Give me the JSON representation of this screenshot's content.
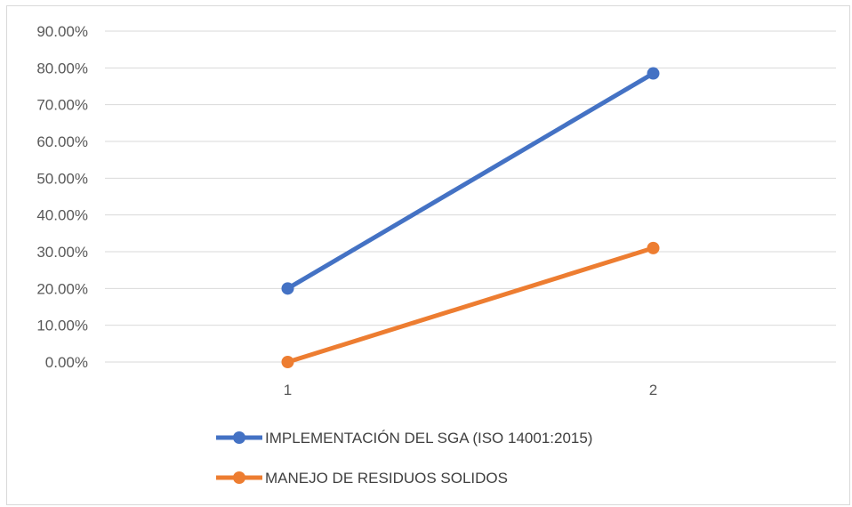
{
  "chart_data": {
    "type": "line",
    "x": [
      "1",
      "2"
    ],
    "series": [
      {
        "name": "IMPLEMENTACIÓN DEL SGA (ISO 14001:2015)",
        "values": [
          0.2,
          0.785
        ],
        "color": "#4472c4"
      },
      {
        "name": "MANEJO DE RESIDUOS SOLIDOS",
        "values": [
          0.0,
          0.31
        ],
        "color": "#ed7d31"
      }
    ],
    "ylim": [
      0,
      0.9
    ],
    "yticks": [
      "0.00%",
      "10.00%",
      "20.00%",
      "30.00%",
      "40.00%",
      "50.00%",
      "60.00%",
      "70.00%",
      "80.00%",
      "90.00%"
    ],
    "grid": true,
    "gridline_color": "#d9d9d9",
    "legend": "bottom",
    "title": "",
    "xlabel": "",
    "ylabel": ""
  }
}
